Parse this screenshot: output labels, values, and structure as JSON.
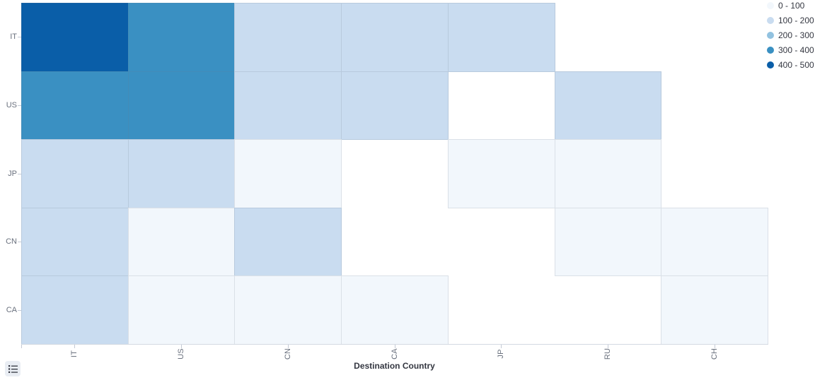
{
  "chart_data": {
    "type": "heatmap",
    "title": "",
    "xlabel": "Destination Country",
    "ylabel": "",
    "x_categories": [
      "IT",
      "US",
      "CN",
      "CA",
      "JP",
      "RU",
      "CH"
    ],
    "y_categories": [
      "IT",
      "US",
      "JP",
      "CN",
      "CA"
    ],
    "legend_position": "top-right",
    "grid": false,
    "bands": [
      {
        "label": "0 - 100",
        "color": "#f2f7fc"
      },
      {
        "label": "100 - 200",
        "color": "#c9dcf0"
      },
      {
        "label": "200 - 300",
        "color": "#92c2e0"
      },
      {
        "label": "300 - 400",
        "color": "#3a90c2"
      },
      {
        "label": "400 - 500",
        "color": "#0a5ea8"
      }
    ],
    "cells": [
      [
        4,
        3,
        1,
        1,
        1,
        null,
        null
      ],
      [
        3,
        3,
        1,
        1,
        null,
        1,
        null
      ],
      [
        1,
        1,
        0,
        null,
        0,
        0,
        null
      ],
      [
        1,
        0,
        1,
        null,
        null,
        0,
        0
      ],
      [
        1,
        0,
        0,
        0,
        null,
        null,
        0
      ]
    ]
  },
  "colors": {
    "axis_label": "#69707d",
    "axis_title": "#343741",
    "legend_text": "#343741"
  },
  "controls": {
    "legend_toggle_icon": "list-icon"
  }
}
